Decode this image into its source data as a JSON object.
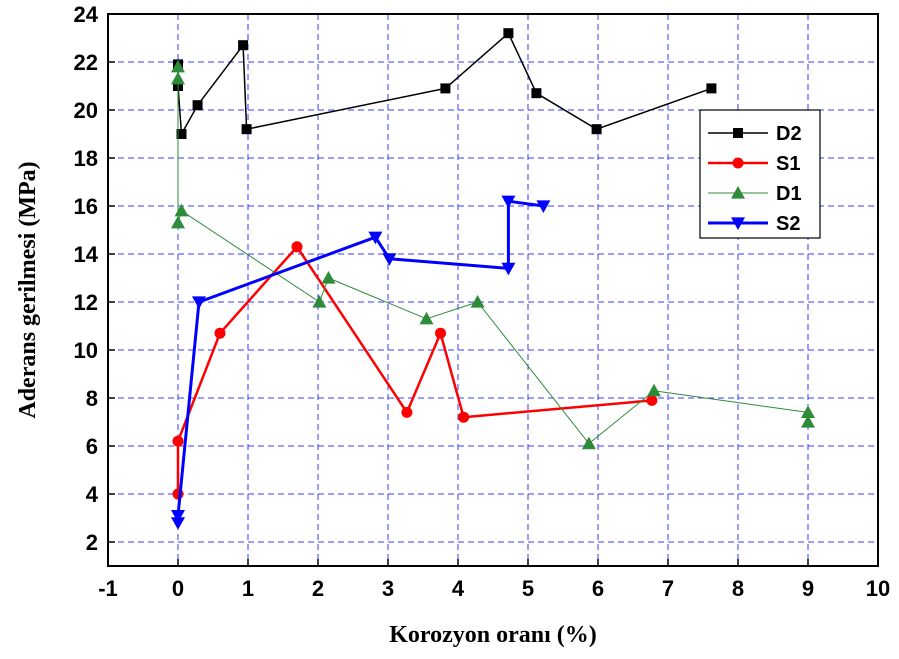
{
  "chart_data": {
    "type": "line",
    "title": "",
    "xlabel": "Korozyon oranı (%)",
    "ylabel": "Aderans gerilmesi (MPa)",
    "xlim": [
      -1,
      10
    ],
    "ylim": [
      1,
      24
    ],
    "xticks": [
      -1,
      0,
      1,
      2,
      3,
      4,
      5,
      6,
      7,
      8,
      9,
      10
    ],
    "yticks": [
      2,
      4,
      6,
      8,
      10,
      12,
      14,
      16,
      18,
      20,
      22,
      24
    ],
    "grid": true,
    "legend_position": "top-right",
    "series": [
      {
        "name": "D2",
        "color": "#000000",
        "marker": "square",
        "line_width": 1.5,
        "points": [
          [
            0.0,
            21.9
          ],
          [
            0.0,
            21.0
          ],
          [
            0.05,
            19.0
          ],
          [
            0.28,
            20.2
          ],
          [
            0.93,
            22.7
          ],
          [
            0.98,
            19.2
          ],
          [
            3.82,
            20.9
          ],
          [
            4.72,
            23.2
          ],
          [
            5.12,
            20.7
          ],
          [
            5.98,
            19.2
          ],
          [
            7.62,
            20.9
          ]
        ]
      },
      {
        "name": "S1",
        "color": "#ff0000",
        "marker": "circle",
        "line_width": 2.5,
        "points": [
          [
            0.0,
            4.0
          ],
          [
            0.0,
            6.2
          ],
          [
            0.6,
            10.7
          ],
          [
            1.7,
            14.3
          ],
          [
            3.27,
            7.4
          ],
          [
            3.75,
            10.7
          ],
          [
            4.08,
            7.2
          ],
          [
            6.77,
            7.9
          ]
        ]
      },
      {
        "name": "D1",
        "color": "#2e8b3a",
        "marker": "triangle-up",
        "line_width": 1,
        "points": [
          [
            0.0,
            21.8
          ],
          [
            0.0,
            21.3
          ],
          [
            0.0,
            15.3
          ],
          [
            0.05,
            15.8
          ],
          [
            2.02,
            12.0
          ],
          [
            2.15,
            13.0
          ],
          [
            3.55,
            11.3
          ],
          [
            4.28,
            12.0
          ],
          [
            5.87,
            6.1
          ],
          [
            6.8,
            8.3
          ],
          [
            9.0,
            7.4
          ],
          [
            9.0,
            7.0
          ]
        ]
      },
      {
        "name": "S2",
        "color": "#0000ff",
        "marker": "triangle-down",
        "line_width": 3,
        "points": [
          [
            0.0,
            2.8
          ],
          [
            0.0,
            3.1
          ],
          [
            0.3,
            12.0
          ],
          [
            2.82,
            14.7
          ],
          [
            3.02,
            13.8
          ],
          [
            4.72,
            13.4
          ],
          [
            4.72,
            16.2
          ],
          [
            5.22,
            16.0
          ]
        ]
      }
    ]
  }
}
